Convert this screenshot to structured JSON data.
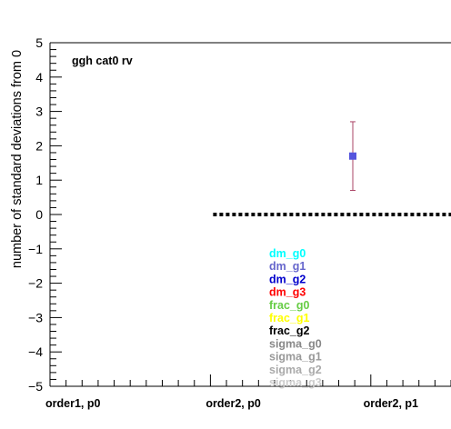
{
  "chart_data": {
    "type": "scatter",
    "title": "ggh cat0 rv",
    "ylabel": "number of standard deviations from 0",
    "ylim": [
      -5,
      5
    ],
    "y_ticks": [
      "−5",
      "−4",
      "−3",
      "−2",
      "−1",
      "0",
      "1",
      "2",
      "3",
      "4",
      "5"
    ],
    "categories": [
      "order1, p0",
      "order2, p0",
      "order2, p1"
    ],
    "x_range": [
      0,
      2.5
    ],
    "grid": false,
    "points": [
      {
        "x": 2.5,
        "y": 1.7,
        "err_low": 1.0,
        "err_high": 1.0,
        "color": "#5555dd"
      }
    ],
    "reference_line": {
      "y": 0,
      "x_from": 1.0,
      "x_to": 2.5,
      "style": "dotted",
      "color": "#000000"
    },
    "legend": [
      {
        "name": "dm_g0",
        "color": "#00ffff"
      },
      {
        "name": "dm_g1",
        "color": "#6666cc"
      },
      {
        "name": "dm_g2",
        "color": "#0000cc"
      },
      {
        "name": "dm_g3",
        "color": "#ff0000"
      },
      {
        "name": "frac_g0",
        "color": "#66cc44"
      },
      {
        "name": "frac_g1",
        "color": "#ffff00"
      },
      {
        "name": "frac_g2",
        "color": "#000000"
      },
      {
        "name": "sigma_g0",
        "color": "#888888"
      },
      {
        "name": "sigma_g1",
        "color": "#999999"
      },
      {
        "name": "sigma_g2",
        "color": "#aaaaaa"
      },
      {
        "name": "sigma_g3",
        "color": "#cccccc"
      }
    ],
    "legend_position": "bottom-center"
  }
}
